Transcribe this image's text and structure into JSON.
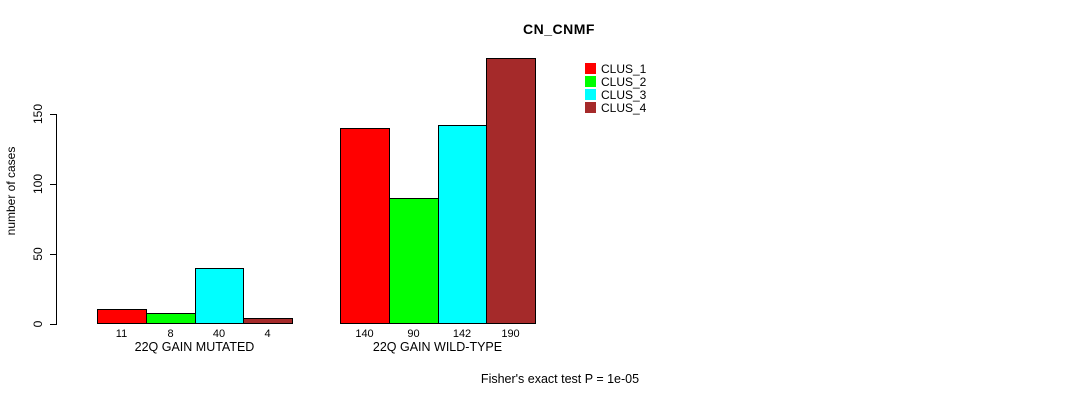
{
  "chart_data": {
    "type": "bar",
    "title": "CN_CNMF",
    "ylabel": "number of cases",
    "xlabel": "",
    "ylim": [
      0,
      150
    ],
    "yticks": [
      0,
      50,
      100,
      150
    ],
    "grid": false,
    "legend_position": "top-right",
    "categories": [
      "22Q GAIN MUTATED",
      "22Q GAIN WILD-TYPE"
    ],
    "series": [
      {
        "name": "CLUS_1",
        "color": "#ff0000",
        "values": [
          11,
          140
        ]
      },
      {
        "name": "CLUS_2",
        "color": "#00ff00",
        "values": [
          8,
          90
        ]
      },
      {
        "name": "CLUS_3",
        "color": "#00ffff",
        "values": [
          40,
          142
        ]
      },
      {
        "name": "CLUS_4",
        "color": "#a52a2a",
        "values": [
          4,
          190
        ]
      }
    ],
    "bar_value_labels": [
      [
        11,
        8,
        40,
        4
      ],
      [
        140,
        90,
        142,
        190
      ]
    ],
    "annotation": "Fisher's exact test P = 1e-05"
  }
}
